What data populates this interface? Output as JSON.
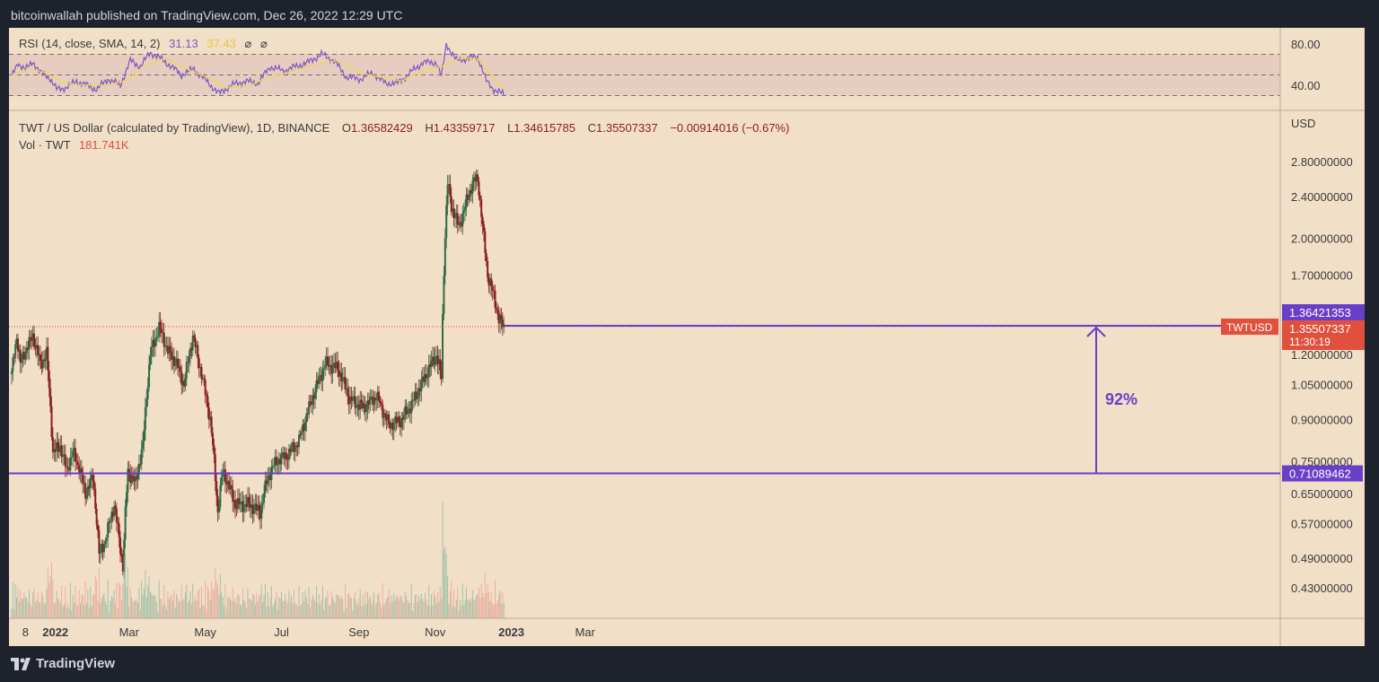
{
  "header": {
    "published_text": "bitcoinwallah published on TradingView.com, Dec 26, 2022 12:29 UTC"
  },
  "footer": {
    "brand": "TradingView"
  },
  "colors": {
    "background": "#f2dfc8",
    "up_candle": "#2f6b45",
    "down_candle": "#8b1e1e",
    "rsi_line": "#7e57c2",
    "rsi_sma": "#f0d64a",
    "level_line": "#6a3fc8",
    "price_label_bg": "#e0503c",
    "current_price_line": "#e0503c"
  },
  "chart_data": [
    {
      "type": "candlestick",
      "title": "TWT / US Dollar (calculated by TradingView), 1D, BINANCE",
      "ohlc_readout": {
        "o_label": "O",
        "o": "1.36582429",
        "h_label": "H",
        "h": "1.43359717",
        "l_label": "L",
        "l": "1.34615785",
        "c_label": "C",
        "c": "1.35507337",
        "change": "−0.00914016 (−0.67%)"
      },
      "volume_label": "Vol · TWT",
      "volume_value": "181.741K",
      "currency": "USD",
      "y_scale": "log",
      "ylim": [
        0.39,
        3.15
      ],
      "y_ticks": [
        "2.80000000",
        "2.40000000",
        "2.00000000",
        "1.70000000",
        "1.20000000",
        "1.05000000",
        "0.90000000",
        "0.75000000",
        "0.65000000",
        "0.57000000",
        "0.49000000",
        "0.43000000"
      ],
      "x_ticks": [
        "8",
        "2022",
        "Mar",
        "May",
        "Jul",
        "Sep",
        "Nov",
        "2023",
        "Mar"
      ],
      "price_path": [
        [
          "2021-11-27",
          1.1
        ],
        [
          "2021-12-01",
          1.3
        ],
        [
          "2021-12-04",
          1.15
        ],
        [
          "2021-12-08",
          1.22
        ],
        [
          "2021-12-14",
          1.3
        ],
        [
          "2021-12-20",
          1.15
        ],
        [
          "2021-12-25",
          1.2
        ],
        [
          "2021-12-30",
          0.78
        ],
        [
          "2022-01-05",
          0.8
        ],
        [
          "2022-01-10",
          0.72
        ],
        [
          "2022-01-15",
          0.78
        ],
        [
          "2022-01-20",
          0.73
        ],
        [
          "2022-01-25",
          0.65
        ],
        [
          "2022-01-31",
          0.7
        ],
        [
          "2022-02-05",
          0.5
        ],
        [
          "2022-02-10",
          0.53
        ],
        [
          "2022-02-17",
          0.62
        ],
        [
          "2022-02-24",
          0.47
        ],
        [
          "2022-02-28",
          0.72
        ],
        [
          "2022-03-06",
          0.68
        ],
        [
          "2022-03-12",
          0.8
        ],
        [
          "2022-03-18",
          1.2
        ],
        [
          "2022-03-25",
          1.35
        ],
        [
          "2022-04-01",
          1.22
        ],
        [
          "2022-04-08",
          1.15
        ],
        [
          "2022-04-14",
          1.05
        ],
        [
          "2022-04-21",
          1.3
        ],
        [
          "2022-04-28",
          1.1
        ],
        [
          "2022-05-05",
          0.9
        ],
        [
          "2022-05-11",
          0.6
        ],
        [
          "2022-05-15",
          0.72
        ],
        [
          "2022-05-25",
          0.62
        ],
        [
          "2022-06-05",
          0.62
        ],
        [
          "2022-06-14",
          0.6
        ],
        [
          "2022-06-20",
          0.7
        ],
        [
          "2022-06-27",
          0.75
        ],
        [
          "2022-07-05",
          0.77
        ],
        [
          "2022-07-15",
          0.82
        ],
        [
          "2022-07-25",
          0.98
        ],
        [
          "2022-08-05",
          1.15
        ],
        [
          "2022-08-15",
          1.13
        ],
        [
          "2022-08-25",
          0.98
        ],
        [
          "2022-09-05",
          0.95
        ],
        [
          "2022-09-15",
          1.0
        ],
        [
          "2022-09-25",
          0.88
        ],
        [
          "2022-10-05",
          0.9
        ],
        [
          "2022-10-15",
          0.98
        ],
        [
          "2022-10-25",
          1.1
        ],
        [
          "2022-11-02",
          1.2
        ],
        [
          "2022-11-06",
          1.08
        ],
        [
          "2022-11-08",
          1.75
        ],
        [
          "2022-11-11",
          2.55
        ],
        [
          "2022-11-14",
          2.3
        ],
        [
          "2022-11-20",
          2.1
        ],
        [
          "2022-11-25",
          2.3
        ],
        [
          "2022-12-01",
          2.55
        ],
        [
          "2022-12-05",
          2.6
        ],
        [
          "2022-12-09",
          2.1
        ],
        [
          "2022-12-13",
          1.7
        ],
        [
          "2022-12-18",
          1.55
        ],
        [
          "2022-12-22",
          1.4
        ],
        [
          "2022-12-26",
          1.355
        ]
      ],
      "annotations": {
        "support_level": 0.71089462,
        "support_label": "0.71089462",
        "current_price_label": "1.36421353",
        "symbol_label": "TWTUSD",
        "last_close_label": "1.35507337",
        "countdown_label": "11:30:19",
        "arrow_text": "92%"
      }
    },
    {
      "type": "line",
      "title": "RSI (14, close, SMA, 14, 2)",
      "rsi_value": "31.13",
      "sma_value": "37.43",
      "flags": [
        "⌀",
        "⌀"
      ],
      "ylim": [
        25,
        92
      ],
      "y_ticks": [
        "80.00",
        "40.00"
      ],
      "band": [
        30,
        70
      ],
      "midline": 50,
      "rsi_path": [
        [
          "2021-11-27",
          48
        ],
        [
          "2021-12-02",
          62
        ],
        [
          "2021-12-08",
          55
        ],
        [
          "2021-12-14",
          63
        ],
        [
          "2021-12-20",
          52
        ],
        [
          "2021-12-27",
          48
        ],
        [
          "2022-01-02",
          36
        ],
        [
          "2022-01-10",
          38
        ],
        [
          "2022-01-18",
          44
        ],
        [
          "2022-01-26",
          40
        ],
        [
          "2022-02-03",
          36
        ],
        [
          "2022-02-12",
          46
        ],
        [
          "2022-02-22",
          40
        ],
        [
          "2022-03-02",
          64
        ],
        [
          "2022-03-10",
          58
        ],
        [
          "2022-03-18",
          72
        ],
        [
          "2022-03-26",
          66
        ],
        [
          "2022-04-04",
          58
        ],
        [
          "2022-04-12",
          50
        ],
        [
          "2022-04-22",
          56
        ],
        [
          "2022-05-02",
          44
        ],
        [
          "2022-05-12",
          32
        ],
        [
          "2022-05-22",
          40
        ],
        [
          "2022-06-02",
          44
        ],
        [
          "2022-06-12",
          42
        ],
        [
          "2022-06-22",
          58
        ],
        [
          "2022-07-02",
          54
        ],
        [
          "2022-07-12",
          58
        ],
        [
          "2022-07-22",
          62
        ],
        [
          "2022-08-02",
          70
        ],
        [
          "2022-08-12",
          64
        ],
        [
          "2022-08-22",
          48
        ],
        [
          "2022-09-02",
          46
        ],
        [
          "2022-09-12",
          52
        ],
        [
          "2022-09-22",
          42
        ],
        [
          "2022-10-02",
          42
        ],
        [
          "2022-10-12",
          52
        ],
        [
          "2022-10-22",
          62
        ],
        [
          "2022-11-02",
          62
        ],
        [
          "2022-11-06",
          48
        ],
        [
          "2022-11-10",
          80
        ],
        [
          "2022-11-18",
          64
        ],
        [
          "2022-11-28",
          66
        ],
        [
          "2022-12-05",
          68
        ],
        [
          "2022-12-12",
          44
        ],
        [
          "2022-12-18",
          36
        ],
        [
          "2022-12-26",
          31
        ]
      ],
      "sma_path": [
        [
          "2021-11-27",
          50
        ],
        [
          "2021-12-10",
          56
        ],
        [
          "2021-12-24",
          52
        ],
        [
          "2022-01-08",
          42
        ],
        [
          "2022-01-24",
          40
        ],
        [
          "2022-02-10",
          40
        ],
        [
          "2022-02-26",
          44
        ],
        [
          "2022-03-14",
          60
        ],
        [
          "2022-03-30",
          66
        ],
        [
          "2022-04-16",
          56
        ],
        [
          "2022-05-02",
          48
        ],
        [
          "2022-05-18",
          38
        ],
        [
          "2022-06-05",
          40
        ],
        [
          "2022-06-22",
          48
        ],
        [
          "2022-07-10",
          54
        ],
        [
          "2022-07-28",
          60
        ],
        [
          "2022-08-14",
          64
        ],
        [
          "2022-09-01",
          52
        ],
        [
          "2022-09-18",
          48
        ],
        [
          "2022-10-05",
          44
        ],
        [
          "2022-10-22",
          54
        ],
        [
          "2022-11-06",
          58
        ],
        [
          "2022-11-20",
          66
        ],
        [
          "2022-12-05",
          66
        ],
        [
          "2022-12-16",
          50
        ],
        [
          "2022-12-26",
          37.43
        ]
      ]
    }
  ]
}
